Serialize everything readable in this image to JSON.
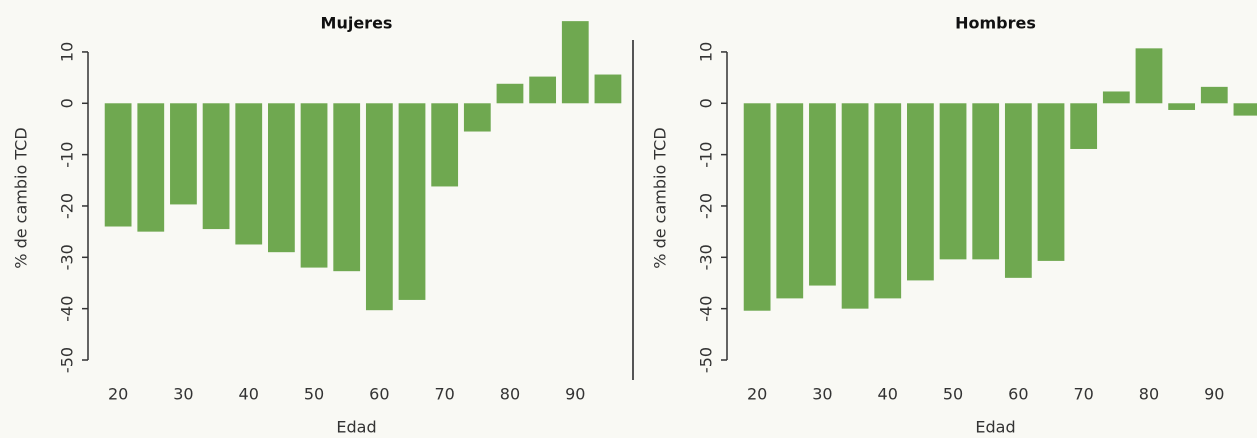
{
  "chart_data": [
    {
      "type": "bar",
      "title": "Mujeres",
      "xlabel": "Edad",
      "ylabel": "% de cambio TCD",
      "color": "#6fa850",
      "x": [
        20,
        25,
        30,
        35,
        40,
        45,
        50,
        55,
        60,
        65,
        70,
        75,
        80,
        85,
        90,
        95
      ],
      "values": [
        -24,
        -25,
        -19.7,
        -24.5,
        -27.5,
        -29,
        -32,
        -32.7,
        -40.3,
        -38.3,
        -16.2,
        -5.5,
        3.8,
        5.2,
        16,
        5.6
      ],
      "xlim": [
        16,
        97
      ],
      "xticks": [
        20,
        30,
        40,
        50,
        60,
        70,
        80,
        90
      ],
      "ylim": [
        -50,
        17
      ],
      "yticks": [
        -50,
        -40,
        -30,
        -20,
        -10,
        0,
        10
      ]
    },
    {
      "type": "bar",
      "title": "Hombres",
      "xlabel": "Edad",
      "ylabel": "% de cambio TCD",
      "color": "#6fa850",
      "x": [
        20,
        25,
        30,
        35,
        40,
        45,
        50,
        55,
        60,
        65,
        70,
        75,
        80,
        85,
        90,
        95
      ],
      "values": [
        -40.4,
        -38,
        -35.5,
        -40,
        -38,
        -34.5,
        -30.4,
        -30.4,
        -34,
        -30.7,
        -8.9,
        2.3,
        10.7,
        -1.3,
        3.2,
        -2.4
      ],
      "xlim": [
        16,
        97
      ],
      "xticks": [
        20,
        30,
        40,
        50,
        60,
        70,
        80,
        90
      ],
      "ylim": [
        -50,
        17
      ],
      "yticks": [
        -50,
        -40,
        -30,
        -20,
        -10,
        0,
        10
      ]
    }
  ]
}
